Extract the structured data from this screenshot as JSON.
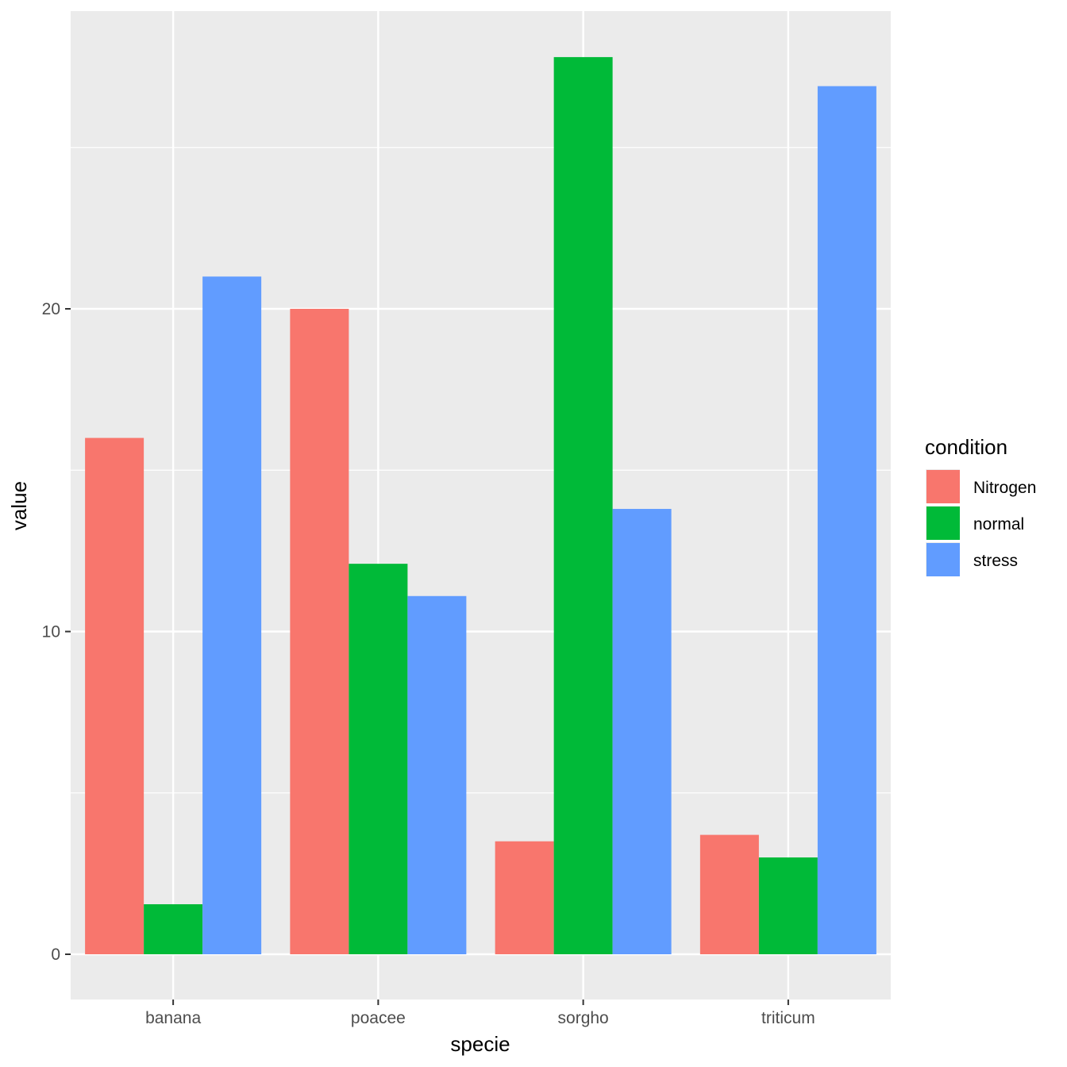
{
  "chart_data": {
    "type": "bar",
    "categories": [
      "banana",
      "poacee",
      "sorgho",
      "triticum"
    ],
    "series": [
      {
        "name": "Nitrogen",
        "color": "#F8766D",
        "values": [
          16,
          20,
          3.5,
          3.7
        ]
      },
      {
        "name": "normal",
        "color": "#00BA38",
        "values": [
          1.55,
          12.1,
          27.8,
          3.0
        ]
      },
      {
        "name": "stress",
        "color": "#619CFF",
        "values": [
          21,
          11.1,
          13.8,
          26.9
        ]
      }
    ],
    "xlabel": "specie",
    "ylabel": "value",
    "legend_title": "condition",
    "y_ticks": [
      0,
      10,
      20
    ],
    "ylim": [
      -1.4,
      29.2
    ],
    "grid": true,
    "legend_position": "right"
  }
}
